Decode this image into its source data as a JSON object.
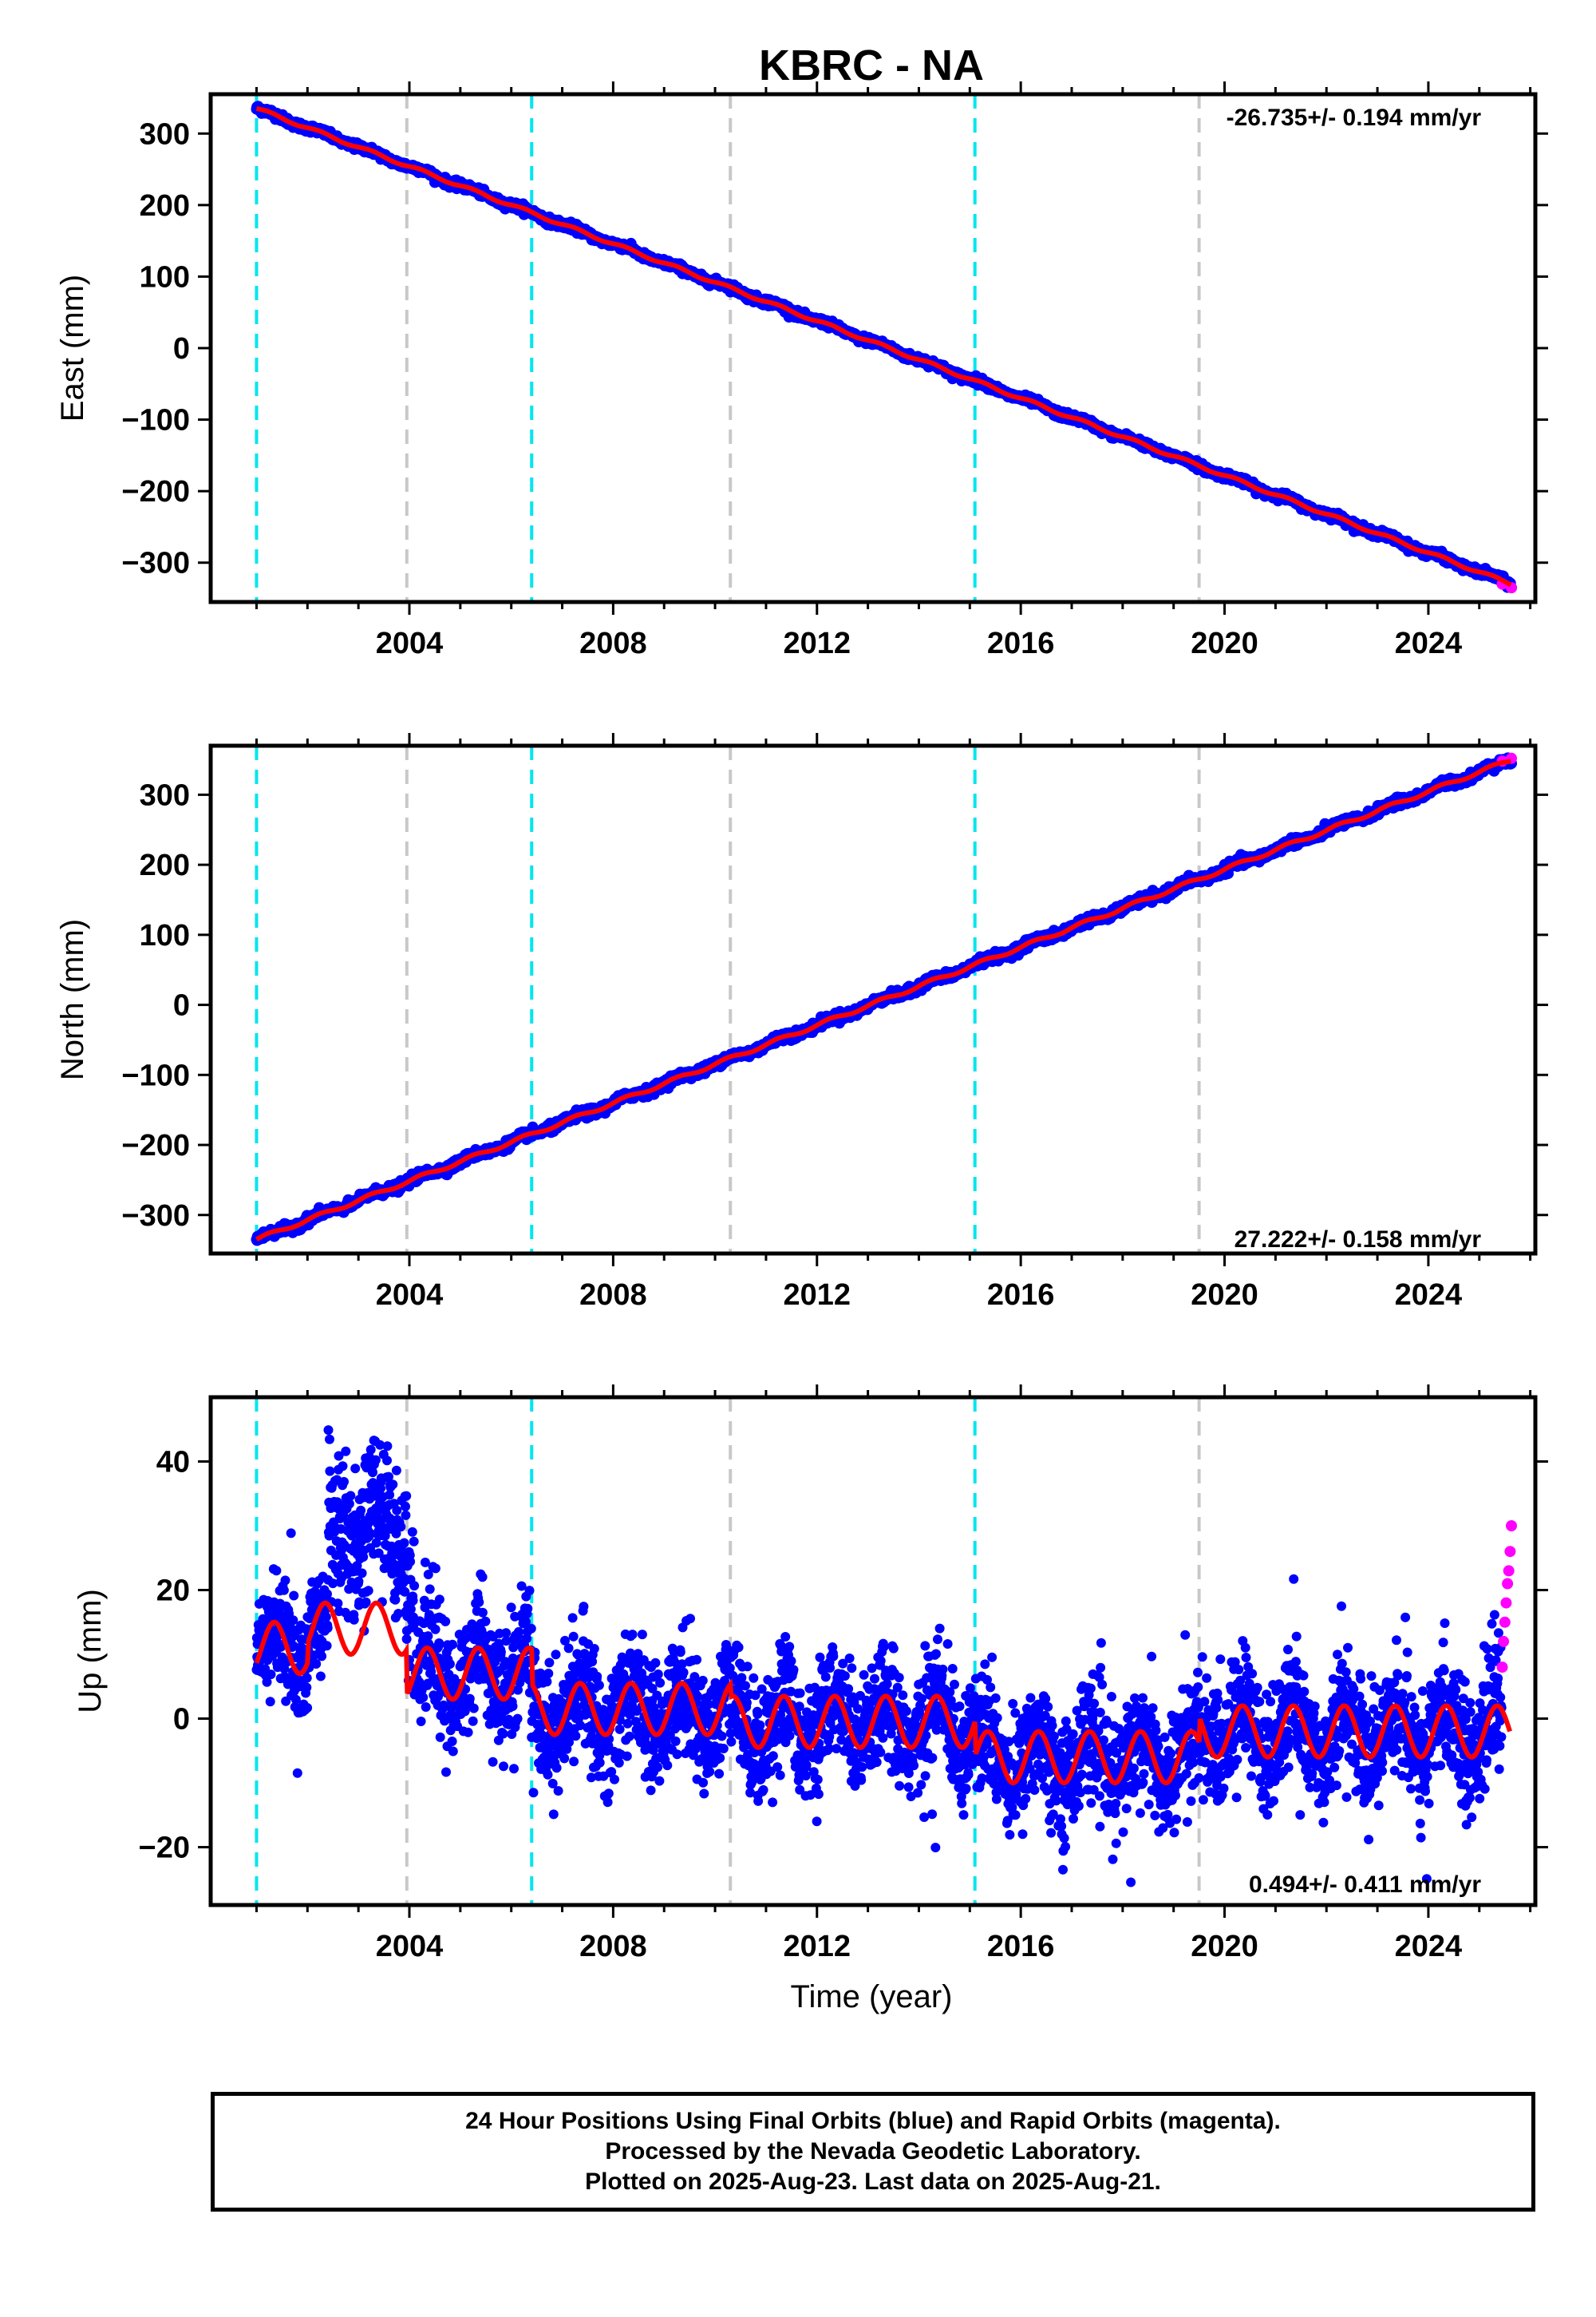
{
  "figure_title": "KBRC - NA",
  "xlabel": "Time (year)",
  "footer": {
    "line1": "24 Hour Positions Using Final Orbits (blue) and Rapid Orbits (magenta).",
    "line2": "Processed by the Nevada Geodetic Laboratory.",
    "line3": "Plotted on 2025-Aug-23. Last data on 2025-Aug-21."
  },
  "colors": {
    "final_points": "#0000ff",
    "rapid_points": "#ff00ff",
    "model_line": "#ff0000",
    "equipment_change": "#00e5ee",
    "other_event": "#c8c8c8"
  },
  "chart_data": [
    {
      "type": "scatter",
      "ylabel": "East (mm)",
      "rate_text": "-26.735+/- 0.194 mm/yr",
      "rate_position": "top-right",
      "xlim": [
        2000.1,
        2026.1
      ],
      "ylim": [
        -355,
        355
      ],
      "xticks": [
        2004,
        2008,
        2012,
        2016,
        2020,
        2024
      ],
      "yticks": [
        -300,
        -200,
        -100,
        0,
        100,
        200,
        300
      ],
      "event_lines": {
        "cyan": [
          2001.0,
          2006.4,
          2015.1
        ],
        "gray": [
          2003.95,
          2010.3,
          2019.5
        ]
      },
      "start_year": 2001.0,
      "end_year": 2025.63,
      "rate_mm_per_yr": -26.735,
      "value_at_start": 335,
      "value_at_end": -330,
      "noise_mm": 2.5,
      "seasonal_amp_mm": 2,
      "offsets": [],
      "rapid_tail": {
        "start_year": 2025.45,
        "values": [
          -330,
          -335
        ]
      }
    },
    {
      "type": "scatter",
      "ylabel": "North (mm)",
      "rate_text": "27.222+/- 0.158 mm/yr",
      "rate_position": "bottom-right",
      "xlim": [
        2000.1,
        2026.1
      ],
      "ylim": [
        -355,
        370
      ],
      "xticks": [
        2004,
        2008,
        2012,
        2016,
        2020,
        2024
      ],
      "yticks": [
        -300,
        -200,
        -100,
        0,
        100,
        200,
        300
      ],
      "event_lines": {
        "cyan": [
          2001.0,
          2006.4,
          2015.1
        ],
        "gray": [
          2003.95,
          2010.3,
          2019.5
        ]
      },
      "start_year": 2001.0,
      "end_year": 2025.63,
      "rate_mm_per_yr": 27.222,
      "value_at_start": -335,
      "value_at_end": 350,
      "noise_mm": 3,
      "seasonal_amp_mm": 2.5,
      "offsets": [],
      "rapid_tail": {
        "start_year": 2025.45,
        "values": [
          348,
          352
        ]
      }
    },
    {
      "type": "scatter",
      "ylabel": "Up (mm)",
      "rate_text": "0.494+/- 0.411 mm/yr",
      "rate_position": "bottom-right",
      "xlim": [
        2000.1,
        2026.1
      ],
      "ylim": [
        -29,
        50
      ],
      "xticks": [
        2004,
        2008,
        2012,
        2016,
        2020,
        2024
      ],
      "yticks": [
        -20,
        0,
        20,
        40
      ],
      "event_lines": {
        "cyan": [
          2001.0,
          2006.4,
          2015.1
        ],
        "gray": [
          2003.95,
          2010.3,
          2019.5
        ]
      },
      "start_year": 2001.0,
      "end_year": 2025.45,
      "segments": [
        {
          "from": 2001.0,
          "to": 2002.0,
          "base": 11
        },
        {
          "from": 2002.0,
          "to": 2003.95,
          "base": 14
        },
        {
          "from": 2003.95,
          "to": 2006.4,
          "base": 7
        },
        {
          "from": 2006.4,
          "to": 2010.3,
          "base": 1.5
        },
        {
          "from": 2010.3,
          "to": 2015.1,
          "base": -0.5
        },
        {
          "from": 2015.1,
          "to": 2019.5,
          "base": -6
        },
        {
          "from": 2019.5,
          "to": 2025.6,
          "base": -2
        }
      ],
      "seasonal_amp_mm": 4,
      "noise_mm": 4.5,
      "rapid_tail": {
        "start_year": 2025.45,
        "values": [
          8,
          12,
          15,
          18,
          21,
          23,
          26,
          30
        ]
      }
    }
  ]
}
